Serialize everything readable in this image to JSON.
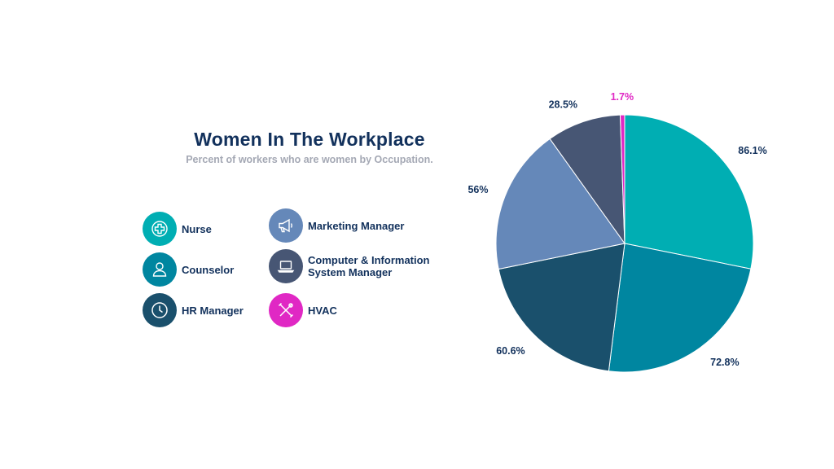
{
  "chart_data": {
    "type": "pie",
    "title": "Women In The Workplace",
    "subtitle": "Percent of workers who are women by Occupation.",
    "slices": [
      {
        "name": "Nurse",
        "label": "86.1%",
        "value": 86.1,
        "color": "#00aeb3"
      },
      {
        "name": "Counselor",
        "label": "72.8%",
        "value": 72.8,
        "color": "#0086a0"
      },
      {
        "name": "HR Manager",
        "label": "60.6%",
        "value": 60.6,
        "color": "#1a506c"
      },
      {
        "name": "Marketing Manager",
        "label": "56%",
        "value": 56,
        "color": "#6588b9"
      },
      {
        "name": "Computer & Information System Manager",
        "label": "28.5%",
        "value": 28.5,
        "color": "#475674"
      },
      {
        "name": "HVAC",
        "label": "1.7%",
        "value": 1.7,
        "color": "#e028c4"
      }
    ],
    "legend_position": "left"
  },
  "legend": [
    {
      "label": "Nurse",
      "icon": "medical-cross-icon",
      "color": "#00aeb3"
    },
    {
      "label": "Counselor",
      "icon": "person-icon",
      "color": "#0086a0"
    },
    {
      "label": "HR Manager",
      "icon": "clock-icon",
      "color": "#1a506c"
    },
    {
      "label": "Marketing Manager",
      "icon": "megaphone-icon",
      "color": "#6588b9"
    },
    {
      "label": "Computer & Information\nSystem Manager",
      "icon": "laptop-icon",
      "color": "#475674"
    },
    {
      "label": "HVAC",
      "icon": "tools-icon",
      "color": "#e028c4"
    }
  ]
}
